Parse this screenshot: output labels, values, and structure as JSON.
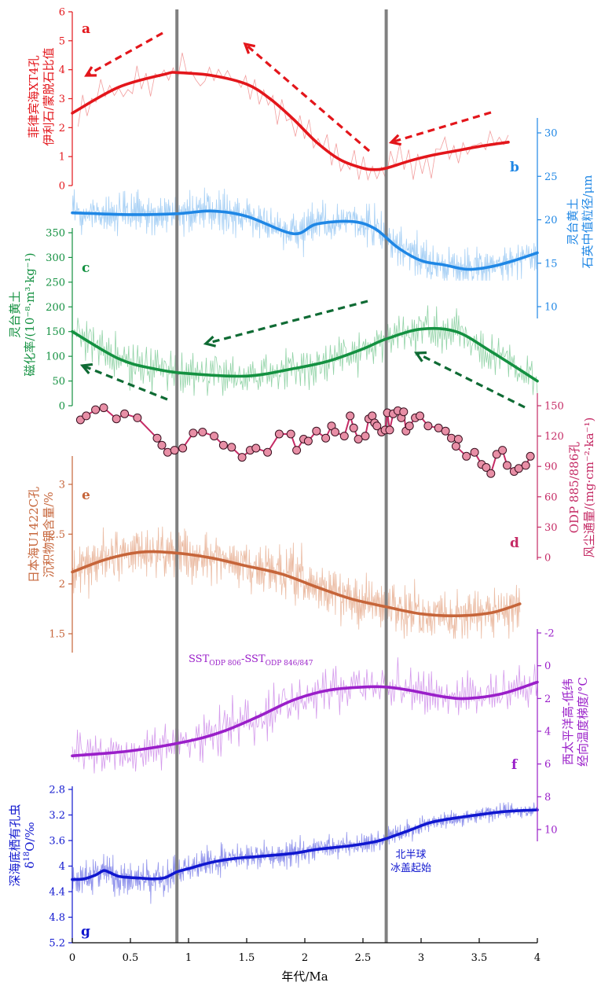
{
  "colors": {
    "a": "#e3161b",
    "a_light": "#ee7e7e",
    "b": "#1f87e5",
    "b_light": "#8cc2f2",
    "c": "#149141",
    "c_light": "#6ec489",
    "c_arrow": "#0f6b34",
    "d": "#c52b65",
    "d_fill": "#e88fa6",
    "e": "#c6653a",
    "e_light": "#e4a585",
    "f": "#9a1fc9",
    "f_light": "#c678e6",
    "g": "#1017cf",
    "g_light": "#6e72e6",
    "marker": "#808080"
  },
  "x_axis": {
    "label": "年代/Ma",
    "range": [
      0,
      4
    ],
    "ticks": [
      "0",
      "0.5",
      "1",
      "1.5",
      "2",
      "2.5",
      "3",
      "3.5",
      "4"
    ]
  },
  "vertical_markers_ma": [
    0.9,
    2.7
  ],
  "annotation_nh": [
    "北半球",
    "冰盖起始"
  ],
  "panels": {
    "a": {
      "letter": "a",
      "label": [
        "菲律宾海XT4孔",
        "伊利石/蒙脱石比值"
      ],
      "ticks": [
        "0",
        "1",
        "2",
        "3",
        "4",
        "5",
        "6"
      ]
    },
    "b": {
      "letter": "b",
      "label": [
        "灵台黄土",
        "石英中值粒径/μm"
      ],
      "ticks": [
        "10",
        "15",
        "20",
        "25",
        "30"
      ]
    },
    "c": {
      "letter": "c",
      "label": [
        "灵台黄土",
        "磁化率/(10⁻⁸·m³·kg⁻¹)"
      ],
      "ticks": [
        "0",
        "50",
        "100",
        "150",
        "200",
        "250",
        "300",
        "350"
      ]
    },
    "d": {
      "letter": "d",
      "label": [
        "ODP 885/886孔",
        "风尘通量/(mg·cm⁻²·ka⁻¹)"
      ],
      "ticks": [
        "0",
        "30",
        "60",
        "90",
        "120",
        "150"
      ]
    },
    "e": {
      "letter": "e",
      "label": [
        "日本海U1422C孔",
        "沉积物钾含量/%"
      ],
      "ticks": [
        "1.5",
        "2",
        "2.5",
        "3"
      ]
    },
    "f": {
      "letter": "f",
      "label": [
        "西太平洋高-低纬",
        "经向温度梯度/°C"
      ],
      "ticks": [
        "-2",
        "0",
        "2",
        "4",
        "6",
        "8",
        "10"
      ],
      "sst_label": {
        "pre": "SST",
        "sub1": "ODP 806",
        "mid": "-SST",
        "sub2": "ODP 846/847"
      }
    },
    "g": {
      "letter": "g",
      "label": [
        "深海底栖有孔虫",
        "δ18O/‰"
      ],
      "ticks": [
        "2.8",
        "3.2",
        "3.6",
        "4",
        "4.4",
        "4.8",
        "5.2"
      ]
    }
  },
  "chart_data": [
    {
      "panel": "a",
      "type": "line",
      "y_range": [
        0,
        6
      ],
      "series": [
        {
          "x": [
            0,
            0.4,
            0.8,
            0.9,
            1.2,
            1.5,
            1.7,
            1.9,
            2.1,
            2.3,
            2.5,
            2.6,
            2.7,
            2.9,
            3.1,
            3.3,
            3.5,
            3.75
          ],
          "values": [
            2.5,
            3.4,
            3.85,
            3.9,
            3.8,
            3.5,
            3.0,
            2.3,
            1.5,
            0.9,
            0.6,
            0.55,
            0.6,
            0.85,
            1.05,
            1.2,
            1.35,
            1.5
          ]
        }
      ]
    },
    {
      "panel": "b",
      "type": "line",
      "y_range": [
        10,
        30
      ],
      "series": [
        {
          "x": [
            0,
            0.5,
            0.9,
            1.2,
            1.5,
            1.9,
            2.1,
            2.4,
            2.6,
            2.8,
            3.0,
            3.2,
            3.4,
            3.6,
            3.8,
            4.0
          ],
          "values": [
            20.8,
            20.6,
            20.7,
            21.0,
            20.4,
            18.4,
            19.5,
            19.8,
            19.0,
            16.8,
            15.3,
            14.8,
            14.3,
            14.6,
            15.3,
            16.2
          ]
        }
      ]
    },
    {
      "panel": "c",
      "type": "line",
      "y_range": [
        0,
        400
      ],
      "series": [
        {
          "x": [
            0,
            0.4,
            0.7,
            1.0,
            1.5,
            1.9,
            2.2,
            2.5,
            2.7,
            3.0,
            3.3,
            3.6,
            4.0
          ],
          "values": [
            150,
            95,
            75,
            65,
            60,
            75,
            90,
            115,
            135,
            155,
            150,
            110,
            50
          ]
        }
      ]
    },
    {
      "panel": "d",
      "type": "scatter",
      "y_range": [
        0,
        150
      ],
      "series": [
        {
          "x": [
            0.07,
            0.12,
            0.2,
            0.27,
            0.38,
            0.45,
            0.56,
            0.73,
            0.77,
            0.82,
            0.88,
            0.95,
            1.04,
            1.12,
            1.22,
            1.3,
            1.37,
            1.46,
            1.53,
            1.58,
            1.68,
            1.78,
            1.88,
            1.93,
            1.99,
            2.03,
            2.1,
            2.18,
            2.23,
            2.26,
            2.34,
            2.39,
            2.42,
            2.46,
            2.52,
            2.55,
            2.58,
            2.6,
            2.62,
            2.66,
            2.69,
            2.71,
            2.73,
            2.76,
            2.8,
            2.83,
            2.85,
            2.87,
            2.9,
            2.95,
            2.99,
            3.06,
            3.15,
            3.21,
            3.26,
            3.32,
            3.3,
            3.39,
            3.46,
            3.52,
            3.56,
            3.6,
            3.65,
            3.7,
            3.74,
            3.8,
            3.84,
            3.9,
            3.94
          ],
          "values": [
            136,
            140,
            146,
            148,
            137,
            142,
            138,
            118,
            111,
            104,
            106,
            108,
            123,
            124,
            120,
            111,
            109,
            99,
            106,
            108,
            104,
            122,
            122,
            106,
            117,
            115,
            125,
            118,
            130,
            124,
            120,
            140,
            128,
            117,
            120,
            137,
            140,
            133,
            130,
            124,
            126,
            143,
            126,
            142,
            145,
            138,
            144,
            125,
            130,
            138,
            140,
            130,
            128,
            125,
            118,
            117,
            110,
            100,
            104,
            92,
            89,
            83,
            102,
            106,
            91,
            85,
            88,
            91,
            100
          ]
        }
      ]
    },
    {
      "panel": "e",
      "type": "line",
      "y_range": [
        1.5,
        3.2
      ],
      "series": [
        {
          "x": [
            0,
            0.3,
            0.6,
            0.9,
            1.2,
            1.5,
            1.8,
            2.1,
            2.4,
            2.7,
            3.0,
            3.3,
            3.6,
            3.85
          ],
          "values": [
            2.12,
            2.25,
            2.32,
            2.31,
            2.26,
            2.18,
            2.1,
            1.97,
            1.85,
            1.77,
            1.7,
            1.68,
            1.71,
            1.8
          ]
        }
      ]
    },
    {
      "panel": "f",
      "type": "line",
      "y_range": [
        -2,
        10
      ],
      "y_inverted": true,
      "series": [
        {
          "x": [
            0,
            0.5,
            1.0,
            1.3,
            1.6,
            1.9,
            2.2,
            2.5,
            2.7,
            2.9,
            3.2,
            3.4,
            3.7,
            4.0
          ],
          "values": [
            5.5,
            5.2,
            4.6,
            4.0,
            3.1,
            2.1,
            1.5,
            1.3,
            1.3,
            1.5,
            1.9,
            2.0,
            1.7,
            1.0
          ]
        }
      ]
    },
    {
      "panel": "g",
      "type": "line",
      "y_range": [
        2.8,
        5.2
      ],
      "y_inverted": true,
      "series": [
        {
          "x": [
            0,
            0.1,
            0.2,
            0.27,
            0.32,
            0.4,
            0.5,
            0.6,
            0.7,
            0.8,
            0.9,
            1.0,
            1.2,
            1.4,
            1.6,
            1.9,
            2.1,
            2.4,
            2.6,
            2.7,
            2.9,
            3.1,
            3.4,
            3.7,
            4.0
          ],
          "values": [
            4.21,
            4.2,
            4.14,
            4.07,
            4.1,
            4.16,
            4.18,
            4.19,
            4.2,
            4.18,
            4.09,
            4.04,
            3.94,
            3.88,
            3.85,
            3.8,
            3.74,
            3.68,
            3.62,
            3.57,
            3.44,
            3.31,
            3.22,
            3.15,
            3.12
          ]
        }
      ]
    }
  ]
}
